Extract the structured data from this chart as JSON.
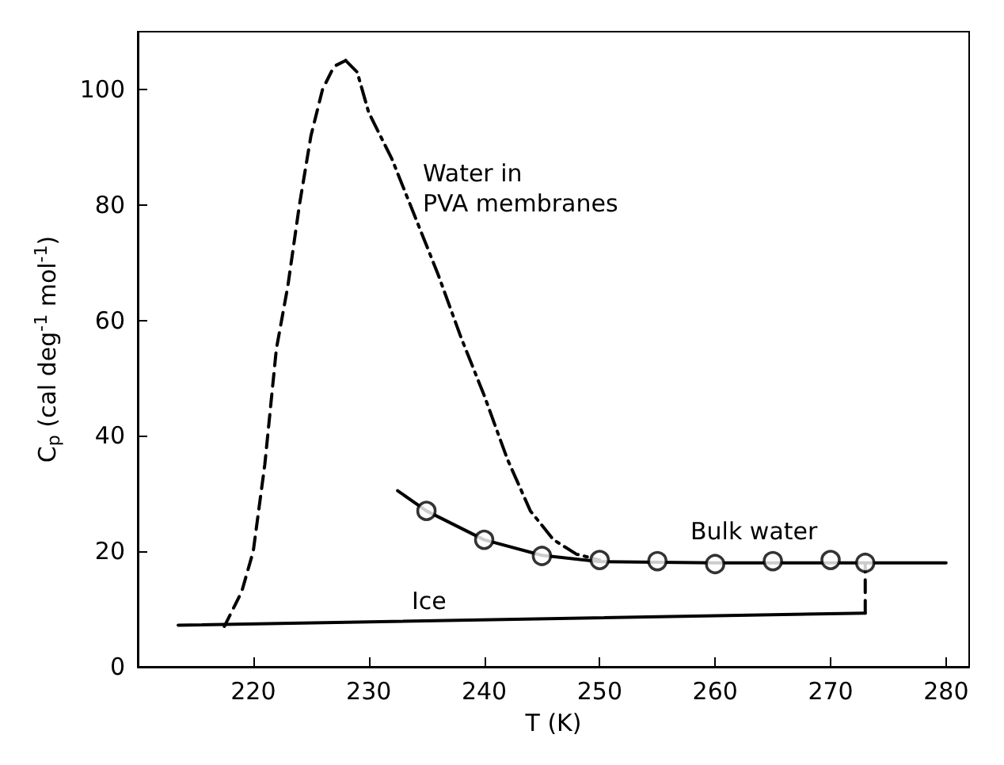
{
  "chart_data": {
    "type": "line",
    "xlabel": "T (K)",
    "ylabel": "C$_{p}$ (cal deg$^{-1}$ mol$^{-1}$)",
    "xlim": [
      210,
      282
    ],
    "xticks": [
      220,
      230,
      240,
      250,
      260,
      270,
      280
    ],
    "ylim": [
      0,
      110
    ],
    "yticks": [
      0,
      20,
      40,
      60,
      80,
      100
    ],
    "grid": false,
    "series": [
      {
        "type": "line",
        "line_style": "dashed",
        "color": "#000000",
        "x": [
          217.5,
          219,
          220,
          221,
          222,
          223,
          224,
          225,
          226,
          227,
          228
        ],
        "values": [
          7,
          13,
          20,
          35,
          55,
          66,
          80,
          92,
          100,
          104,
          105
        ]
      },
      {
        "type": "line",
        "line_style": "dashdot",
        "color": "#000000",
        "x": [
          228,
          229,
          230,
          232,
          234,
          236,
          238,
          240,
          242,
          244,
          246,
          248,
          250
        ],
        "values": [
          105,
          103,
          96,
          88,
          78,
          68,
          57,
          47,
          36,
          27,
          22,
          19.5,
          18.5
        ]
      },
      {
        "type": "line",
        "line_style": "solid",
        "color": "#000000",
        "x": [
          232.5,
          235,
          240,
          245,
          250,
          260,
          270,
          280
        ],
        "values": [
          30.5,
          27,
          22,
          19.3,
          18.2,
          18,
          18,
          18
        ]
      },
      {
        "type": "scatter",
        "marker": "circle",
        "color": "#000000",
        "x": [
          235,
          240,
          245,
          250,
          255,
          260,
          265,
          270,
          273
        ],
        "values": [
          27,
          22,
          19.2,
          18.5,
          18.3,
          17.8,
          18.3,
          18.5,
          18
        ]
      },
      {
        "type": "line",
        "line_style": "solid",
        "color": "#000000",
        "x": [
          213.5,
          273
        ],
        "values": [
          7.2,
          9.3
        ]
      },
      {
        "type": "line",
        "line_style": "dashed",
        "color": "#000000",
        "x": [
          273,
          273
        ],
        "values": [
          9.3,
          18
        ]
      }
    ],
    "annotations": [
      "Water in\nPVA membranes",
      "Bulk water",
      "Ice"
    ]
  }
}
